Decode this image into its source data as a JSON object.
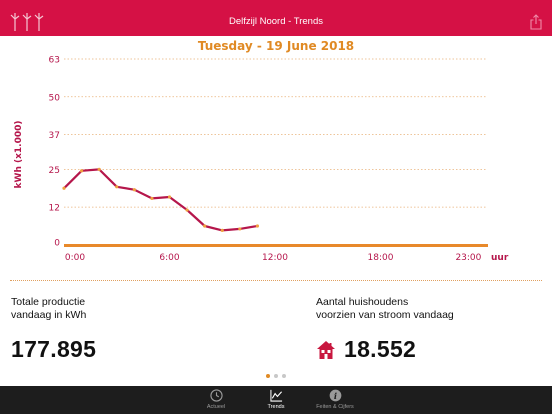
{
  "header": {
    "title": "Delfzijl Noord - Trends",
    "logo_icon": "wind-turbines-icon",
    "share_icon": "share-icon",
    "color": "#d51145"
  },
  "chart_title": "Tuesday - 19 June 2018",
  "chart_data": {
    "type": "line",
    "title": "Tuesday - 19 June 2018",
    "xlabel": "uur",
    "ylabel": "kWh (x1.000)",
    "x_ticks": [
      "0:00",
      "6:00",
      "12:00",
      "18:00",
      "23:00"
    ],
    "y_ticks": [
      "0",
      "12",
      "25",
      "37",
      "50",
      "63"
    ],
    "y_tick_values": [
      0,
      12,
      25,
      37,
      50,
      63
    ],
    "xlim": [
      0,
      24
    ],
    "ylim": [
      0,
      63
    ],
    "grid": true,
    "series": [
      {
        "color": "#b5164b",
        "x": [
          0,
          1,
          2,
          3,
          4,
          5,
          6,
          7,
          8,
          9,
          10,
          11
        ],
        "y": [
          18.5,
          24.5,
          25,
          19,
          18,
          15,
          15.5,
          11,
          5.5,
          4,
          4.5,
          5.5
        ]
      }
    ]
  },
  "stats": {
    "production": {
      "label_line1": "Totale productie",
      "label_line2": "vandaag in kWh",
      "value": "177.895"
    },
    "households": {
      "label_line1": "Aantal huishoudens",
      "label_line2": "voorzien van stroom vandaag",
      "value": "18.552",
      "icon": "house-icon"
    }
  },
  "pager": {
    "count": 3,
    "active_index": 0
  },
  "tabs": [
    {
      "label": "Actueel",
      "icon": "clock-icon"
    },
    {
      "label": "Trends",
      "icon": "trend-chart-icon",
      "active": true
    },
    {
      "label": "Feiten & Cijfers",
      "icon": "info-icon"
    }
  ]
}
